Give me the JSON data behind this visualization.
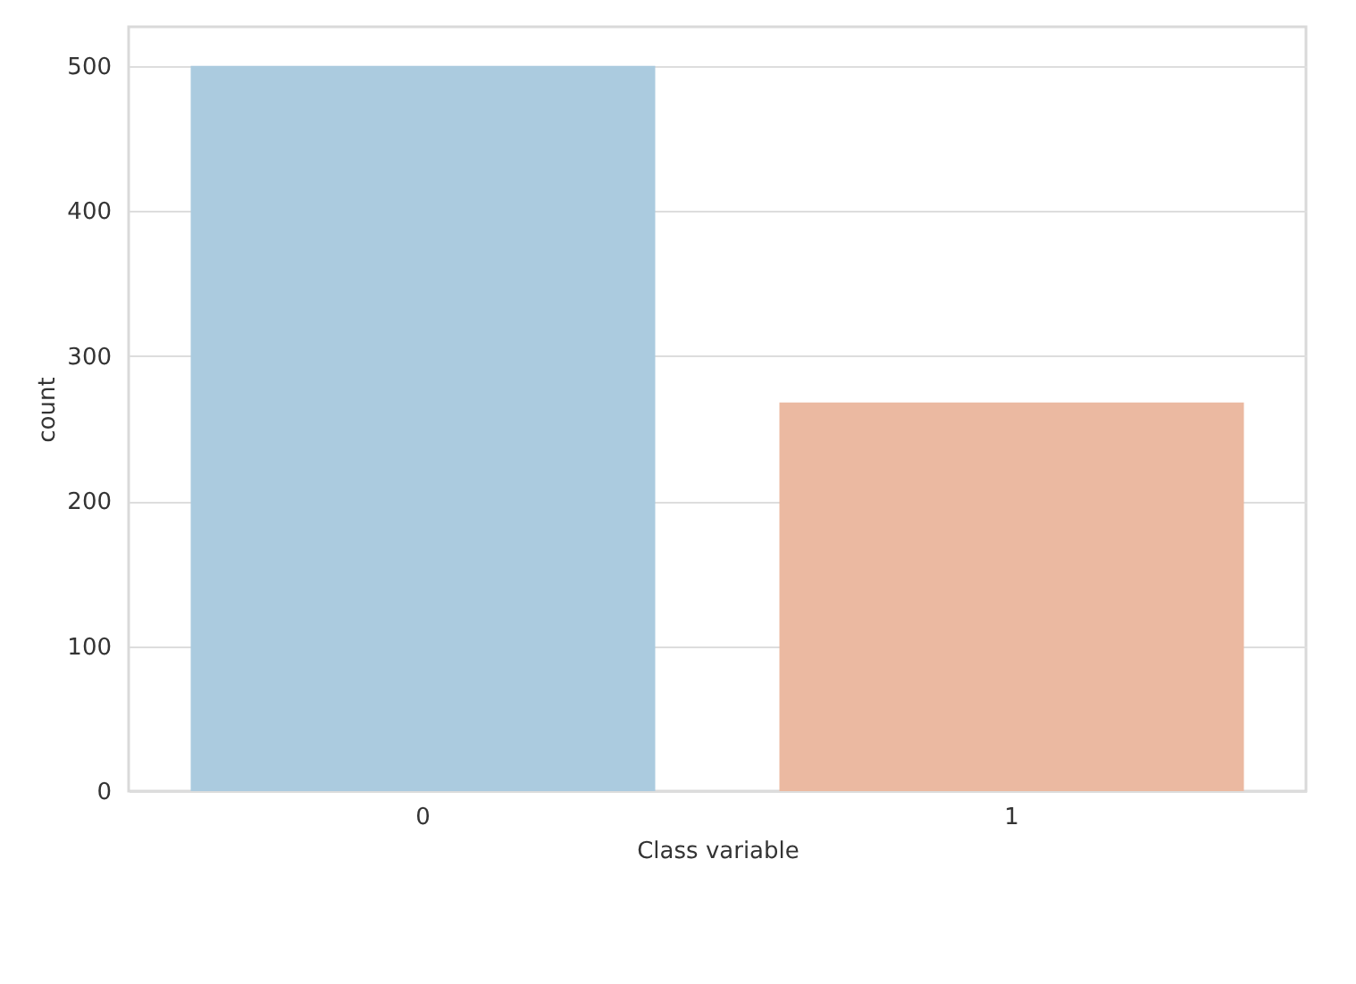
{
  "chart_data": {
    "type": "bar",
    "xlabel": "Class variable",
    "ylabel": "count",
    "categories": [
      "0",
      "1"
    ],
    "values": [
      500,
      268
    ],
    "colors": [
      "#abcbdf",
      "#ebb9a1"
    ],
    "ylim": [
      0,
      527
    ],
    "yticks": [
      0,
      100,
      200,
      300,
      400,
      500
    ],
    "grid": "y"
  }
}
